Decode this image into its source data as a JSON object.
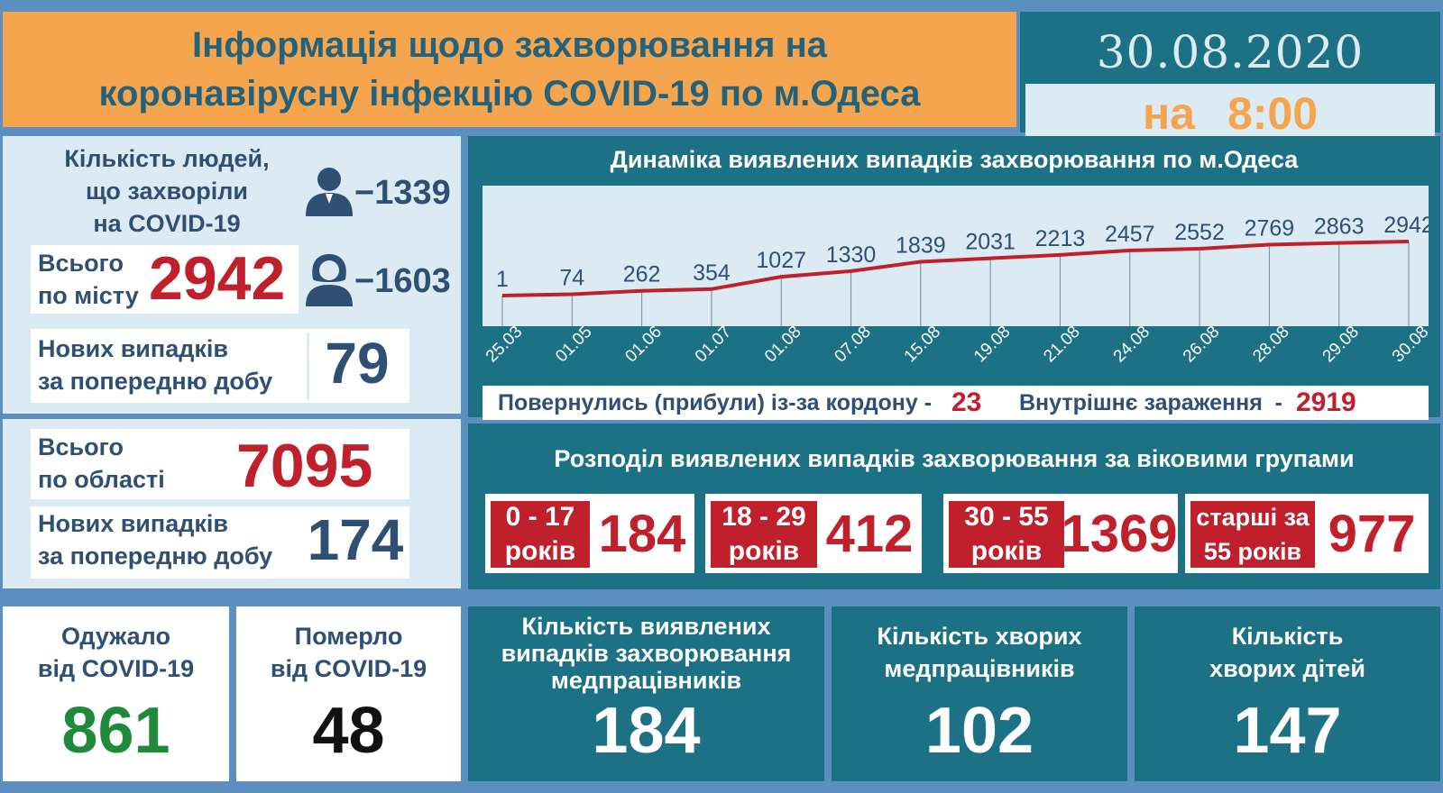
{
  "header": {
    "title": "Інформація щодо захворювання на\nкоронавірусну інфекцію COVID-19 по м.Одеса",
    "date": "30.08.2020",
    "time_prefix": "на",
    "time": "8:00"
  },
  "city": {
    "sick_label": "Кількість людей,\nщо захворіли\nна COVID-19",
    "men": "−1339",
    "women": "−1603",
    "total_label": "Всього\nпо місту",
    "total": "2942",
    "new_label": "Нових випадків\nза попередню добу",
    "new": "79"
  },
  "region": {
    "total_label": "Всього\nпо області",
    "total": "7095",
    "new_label": "Нових випадків\nза попередню добу",
    "new": "174"
  },
  "outcomes": {
    "recovered_label": "Одужало\nвід COVID-19",
    "recovered": "861",
    "died_label": "Померло\nвід COVID-19",
    "died": "48"
  },
  "dynamics": {
    "returned_label": "Повернулись (прибули) із-за кордону -",
    "returned": "23",
    "internal_label": "Внутрішнє зараження  -",
    "internal": "2919"
  },
  "age_groups": {
    "title": "Розподіл виявлених випадків захворювання за віковими групами",
    "groups": [
      {
        "label": "0 - 17\nроків",
        "value": "184"
      },
      {
        "label": "18 - 29\nроків",
        "value": "412"
      },
      {
        "label": "30 - 55\nроків",
        "value": "1369"
      },
      {
        "label": "старші за\n55 років",
        "value": "977"
      }
    ]
  },
  "medics": {
    "detected_label": "Кількість виявлених\nвипадків захворювання\nмедпрацівників",
    "detected": "184",
    "sick_label": "Кількість хворих\nмедпрацівників",
    "sick": "102",
    "children_label": "Кількість\nхворих дітей",
    "children": "147"
  },
  "colors": {
    "teal": "#1d7184",
    "orange": "#f5a54d",
    "red": "#c0202b",
    "navy": "#2f4f73",
    "green": "#1e8a3a"
  },
  "chart_data": {
    "type": "line",
    "title": "Динаміка виявлених випадків захворювання по м.Одеса",
    "categories": [
      "25.03",
      "01.05",
      "01.06",
      "01.07",
      "01.08",
      "07.08",
      "15.08",
      "19.08",
      "21.08",
      "24.08",
      "26.08",
      "28.08",
      "29.08",
      "30.08"
    ],
    "values": [
      1,
      74,
      262,
      354,
      1027,
      1330,
      1839,
      2031,
      2213,
      2457,
      2552,
      2769,
      2863,
      2942
    ],
    "data_labels": [
      "1",
      "74",
      "262",
      "354",
      "1027",
      "1330",
      "1839",
      "2031",
      "2213",
      "2457",
      "2552",
      "2769",
      "2863",
      "2942"
    ],
    "line_color": "#c0202b",
    "grid": "vertical"
  }
}
